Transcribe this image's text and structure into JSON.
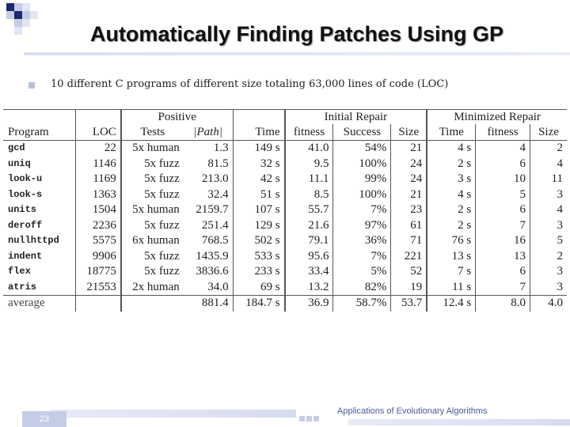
{
  "slide": {
    "title": "Automatically Finding Patches Using GP",
    "bullet": "10 different C programs of different size totaling 63,000 lines of code (LOC)",
    "page_number": "23",
    "footer": "Applications of Evolutionary Algorithms",
    "accent_colors": {
      "navy": "#1b2a6e",
      "light_blue": "#c5cde6",
      "rule": "#d9dff2"
    }
  },
  "table": {
    "groups": {
      "positive": "Positive",
      "initial_repair": "Initial Repair",
      "minimized_repair": "Minimized Repair"
    },
    "headers": [
      "Program",
      "LOC",
      "Tests",
      "|Path|",
      "Time",
      "fitness",
      "Success",
      "Size",
      "Time",
      "fitness",
      "Size"
    ],
    "rows": [
      [
        "gcd",
        "22",
        "5x human",
        "1.3",
        "149 s",
        "41.0",
        "54%",
        "21",
        "4 s",
        "4",
        "2"
      ],
      [
        "uniq",
        "1146",
        "5x fuzz",
        "81.5",
        "32 s",
        "9.5",
        "100%",
        "24",
        "2 s",
        "6",
        "4"
      ],
      [
        "look-u",
        "1169",
        "5x fuzz",
        "213.0",
        "42 s",
        "11.1",
        "99%",
        "24",
        "3 s",
        "10",
        "11"
      ],
      [
        "look-s",
        "1363",
        "5x fuzz",
        "32.4",
        "51 s",
        "8.5",
        "100%",
        "21",
        "4 s",
        "5",
        "3"
      ],
      [
        "units",
        "1504",
        "5x human",
        "2159.7",
        "107 s",
        "55.7",
        "7%",
        "23",
        "2 s",
        "6",
        "4"
      ],
      [
        "deroff",
        "2236",
        "5x fuzz",
        "251.4",
        "129 s",
        "21.6",
        "97%",
        "61",
        "2 s",
        "7",
        "3"
      ],
      [
        "nullhttpd",
        "5575",
        "6x human",
        "768.5",
        "502 s",
        "79.1",
        "36%",
        "71",
        "76 s",
        "16",
        "5"
      ],
      [
        "indent",
        "9906",
        "5x fuzz",
        "1435.9",
        "533 s",
        "95.6",
        "7%",
        "221",
        "13 s",
        "13",
        "2"
      ],
      [
        "flex",
        "18775",
        "5x fuzz",
        "3836.6",
        "233 s",
        "33.4",
        "5%",
        "52",
        "7 s",
        "6",
        "3"
      ],
      [
        "atris",
        "21553",
        "2x human",
        "34.0",
        "69 s",
        "13.2",
        "82%",
        "19",
        "11 s",
        "7",
        "3"
      ]
    ],
    "average": [
      "average",
      "",
      "",
      "881.4",
      "184.7 s",
      "36.9",
      "58.7%",
      "53.7",
      "12.4 s",
      "8.0",
      "4.0"
    ]
  }
}
